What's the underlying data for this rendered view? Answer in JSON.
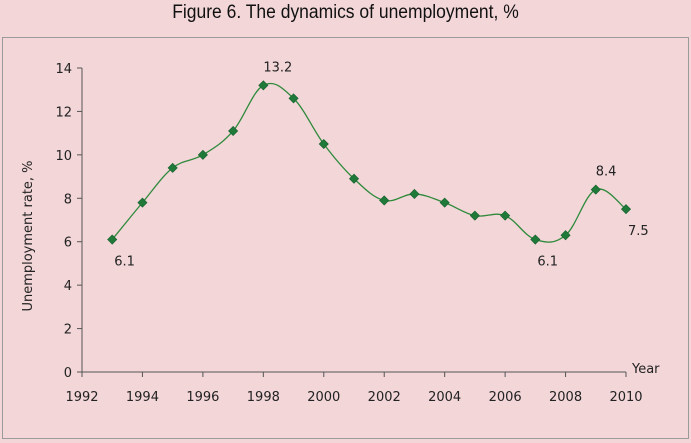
{
  "figure": {
    "title": "Figure 6. The dynamics of unemployment, %"
  },
  "chart_data": {
    "type": "line",
    "title": "Figure 6. The dynamics of unemployment, %",
    "xlabel": "Year",
    "ylabel": "Unemployment rate, %",
    "xlim": [
      1992,
      2010
    ],
    "ylim": [
      0,
      14
    ],
    "xticks": [
      1992,
      1994,
      1996,
      1998,
      2000,
      2002,
      2004,
      2006,
      2008,
      2010
    ],
    "yticks": [
      0,
      2,
      4,
      6,
      8,
      10,
      12,
      14
    ],
    "grid": false,
    "legend": false,
    "series": [
      {
        "x": [
          1993,
          1994,
          1995,
          1996,
          1997,
          1998,
          1999,
          2000,
          2001,
          2002,
          2003,
          2004,
          2005,
          2006,
          2007,
          2008,
          2009,
          2010
        ],
        "y": [
          6.1,
          7.8,
          9.4,
          10.0,
          11.1,
          13.2,
          12.6,
          10.5,
          8.9,
          7.9,
          8.2,
          7.8,
          7.2,
          7.2,
          6.1,
          6.3,
          8.4,
          7.5
        ],
        "color": "#2f8a3c",
        "marker": "diamond",
        "marker_color": "#1f7a3a"
      }
    ],
    "annotations": [
      {
        "label": "6.1",
        "x": 1993,
        "y": 6.1,
        "placement": "below-right"
      },
      {
        "label": "13.2",
        "x": 1998,
        "y": 13.2,
        "placement": "above-right"
      },
      {
        "label": "6.1",
        "x": 2007,
        "y": 6.1,
        "placement": "below-right"
      },
      {
        "label": "8.4",
        "x": 2009,
        "y": 8.4,
        "placement": "above-right"
      },
      {
        "label": "7.5",
        "x": 2010,
        "y": 7.5,
        "placement": "below-right"
      }
    ]
  }
}
